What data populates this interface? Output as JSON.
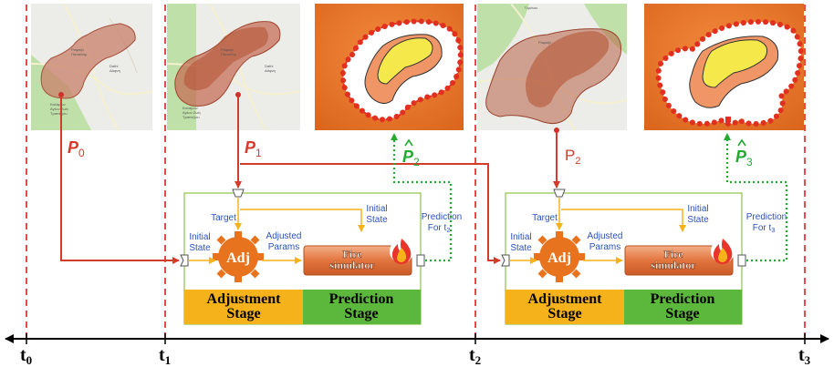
{
  "timeline": {
    "ticks": [
      {
        "base": "t",
        "sub": "0"
      },
      {
        "base": "t",
        "sub": "1"
      },
      {
        "base": "t",
        "sub": "2"
      },
      {
        "base": "t",
        "sub": "3"
      }
    ]
  },
  "perimeters": {
    "p0": {
      "base": "P",
      "sub": "0"
    },
    "p1": {
      "base": "P",
      "sub": "1"
    },
    "p2": {
      "base": "P",
      "sub": "2"
    },
    "p2hat": {
      "base": "P",
      "sub": "2"
    },
    "p3hat": {
      "base": "P",
      "sub": "3"
    }
  },
  "map_text": {
    "m1_a": "Ραφαήλ",
    "m1_b": "Παπαδάμ",
    "m1_c": "Dafni",
    "m1_d": "Δάφνη",
    "m1_e": "Καλάμων",
    "m1_f": "Αγίων Ζωίς",
    "m1_g": "Τραπέζιου",
    "m2_a": "Ραφαήλ",
    "m2_b": "Παπαδάμ",
    "m2_c": "Dafni",
    "m2_d": "Δάφνη",
    "m2_e": "Καλάμων",
    "m2_f": "Αγίων Ζωίς",
    "m2_g": "Τραπέζιου",
    "m3_a": "Γεράνια",
    "m3_b": "Ραφαήλ"
  },
  "stage_box_1": {
    "target": "Target",
    "initial_state_top": [
      "Initial",
      "State"
    ],
    "initial_state_left": [
      "Initial",
      "State"
    ],
    "adjusted_params": [
      "Adjusted",
      "Params"
    ],
    "adj": "Adj",
    "simulator": [
      "Fire",
      "simulator"
    ],
    "prediction": [
      "Prediction",
      "For t",
      "2"
    ],
    "adjustment_stage": [
      "Adjustment",
      "Stage"
    ],
    "prediction_stage": [
      "Prediction",
      "Stage"
    ]
  },
  "stage_box_2": {
    "target": "Target",
    "initial_state_top": [
      "Initial",
      "State"
    ],
    "initial_state_left": [
      "Initial",
      "State"
    ],
    "adjusted_params": [
      "Adjusted",
      "Params"
    ],
    "adj": "Adj",
    "simulator": [
      "Fire",
      "simulator"
    ],
    "prediction": [
      "Prediction",
      "For t",
      "3"
    ],
    "adjustment_stage": [
      "Adjustment",
      "Stage"
    ],
    "prediction_stage": [
      "Prediction",
      "Stage"
    ]
  },
  "colors": {
    "timeline_red": "#e02020",
    "measured_arrow": "#d63a2a",
    "predicted_arrow": "#22aa33",
    "adjustment_band": "#f5b21a",
    "prediction_band": "#5cb83c",
    "adj_gear": "#e8731e",
    "box_border": "#8bc34a",
    "flow_arrow": "#f5b21a"
  }
}
